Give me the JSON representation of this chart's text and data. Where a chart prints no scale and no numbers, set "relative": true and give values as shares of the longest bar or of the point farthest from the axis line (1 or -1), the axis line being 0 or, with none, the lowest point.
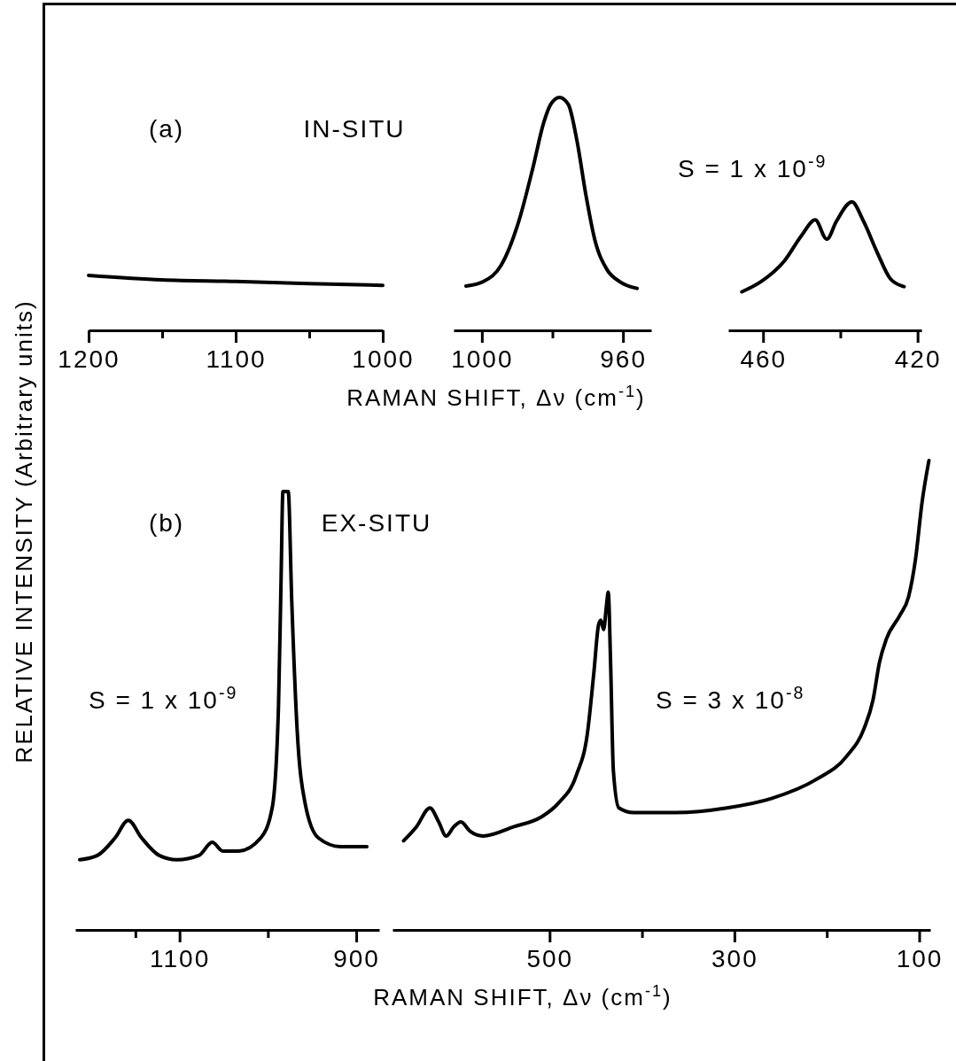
{
  "chart_data": [
    {
      "type": "line",
      "relative": true,
      "tick_labels": "x",
      "ylabel": "RELATIVE INTENSITY (Arbitrary units)",
      "annotations": [
        "(a)",
        "IN-SITU"
      ],
      "xlim": [
        1200,
        1000
      ],
      "xticks": [
        1200,
        {
          "value": 1150,
          "label": null
        },
        1100,
        {
          "value": 1050,
          "label": null
        },
        1000
      ],
      "series": [
        {
          "color": "#000000",
          "x": [
            1200,
            1150,
            1100,
            1050,
            1000
          ],
          "values": [
            1,
            0.92,
            0.89,
            0.85,
            0.82
          ]
        }
      ]
    },
    {
      "type": "line",
      "relative": true,
      "tick_labels": "x",
      "xlabel": "RAMAN SHIFT, Δν (cm$^{-1}$)",
      "xlim": [
        1008,
        952
      ],
      "xticks": [
        1000,
        {
          "value": 980,
          "label": null
        },
        960
      ],
      "series": [
        {
          "color": "#000000",
          "x": [
            1004.5,
            999.5,
            994.5,
            989.5,
            985.5,
            982.5,
            980.5,
            978,
            975.5,
            973,
            970.5,
            968,
            964.5,
            961,
            956
          ],
          "values": [
            0.19,
            0.21,
            0.28,
            0.47,
            0.7,
            0.89,
            0.97,
            1,
            0.97,
            0.81,
            0.58,
            0.39,
            0.26,
            0.21,
            0.18
          ]
        }
      ]
    },
    {
      "type": "line",
      "relative": true,
      "tick_labels": "x",
      "annotations": [
        "S = 1 x 10$^{-9}$"
      ],
      "xlim": [
        469,
        419
      ],
      "xticks": [
        460,
        {
          "value": 440,
          "label": null
        },
        420
      ],
      "series": [
        {
          "color": "#000000",
          "x": [
            465.5,
            460.5,
            454.5,
            450,
            446.5,
            443.5,
            441,
            437,
            434,
            430.5,
            427,
            423.5
          ],
          "values": [
            0.3,
            0.38,
            0.54,
            0.74,
            0.86,
            0.71,
            0.85,
            1,
            0.85,
            0.61,
            0.4,
            0.34
          ]
        }
      ]
    },
    {
      "type": "line",
      "relative": true,
      "tick_labels": "x",
      "annotations": [
        "(b)",
        "EX-SITU",
        "S = 1 x 10$^{-9}$"
      ],
      "xlim": [
        1218,
        874
      ],
      "xticks": [
        {
          "value": 1150,
          "label": null
        },
        1100,
        {
          "value": 1000,
          "label": null
        },
        900
      ],
      "series": [
        {
          "color": "#000000",
          "x": [
            1213,
            1193,
            1173,
            1158,
            1143,
            1123,
            1103,
            1078,
            1063,
            1051,
            1033,
            1008,
            995,
            988,
            985,
            983,
            977,
            973,
            967,
            958,
            943,
            918,
            888
          ],
          "values": [
            0.16,
            0.17,
            0.21,
            0.25,
            0.21,
            0.17,
            0.16,
            0.17,
            0.2,
            0.18,
            0.18,
            0.21,
            0.28,
            0.51,
            0.81,
            1,
            1,
            0.75,
            0.46,
            0.29,
            0.21,
            0.19,
            0.19
          ]
        }
      ]
    },
    {
      "type": "line",
      "relative": true,
      "tick_labels": "x",
      "xlabel": "RAMAN SHIFT, Δν (cm$^{-1}$)",
      "annotations": [
        "S = 3 x 10$^{-8}$"
      ],
      "xlim": [
        670,
        88
      ],
      "xticks": [
        500,
        {
          "value": 400,
          "label": null
        },
        300,
        {
          "value": 200,
          "label": null
        },
        100
      ],
      "series": [
        {
          "color": "#000000",
          "x": [
            658,
            644,
            629.5,
            620,
            612,
            603.5,
            596,
            586,
            572,
            538.5,
            509.5,
            490.5,
            471,
            459,
            452,
            447,
            444.5,
            441.5,
            438.5,
            436.5,
            434,
            431,
            425,
            409,
            365.5,
            308,
            260,
            212,
            178.5,
            159.5,
            150,
            143,
            135.5,
            121,
            111.5,
            104,
            97,
            89.5
          ],
          "values": [
            0.19,
            0.22,
            0.26,
            0.23,
            0.2,
            0.22,
            0.23,
            0.21,
            0.2,
            0.22,
            0.24,
            0.27,
            0.33,
            0.42,
            0.55,
            0.65,
            0.66,
            0.64,
            0.69,
            0.72,
            0.57,
            0.34,
            0.26,
            0.25,
            0.25,
            0.26,
            0.28,
            0.32,
            0.37,
            0.43,
            0.49,
            0.57,
            0.62,
            0.67,
            0.71,
            0.79,
            0.91,
            1
          ]
        }
      ]
    }
  ]
}
